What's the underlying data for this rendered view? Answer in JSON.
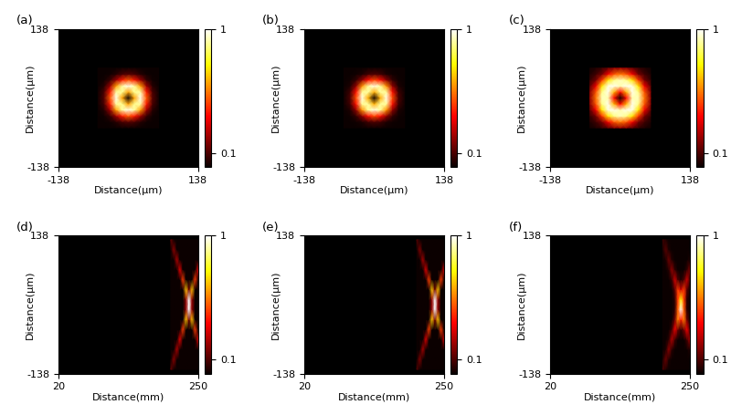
{
  "chart_data": [
    {
      "type": "heatmap",
      "title": "(a)",
      "xlabel": "Distance(µm)",
      "ylabel": "Distance(µm)",
      "xlim": [
        -138,
        138
      ],
      "ylim": [
        -138,
        138
      ],
      "xticks": [
        -138,
        138
      ],
      "yticks": [
        -138,
        138
      ],
      "color": "hot",
      "clim": [
        0,
        1
      ],
      "cticks": [
        0.1,
        1
      ],
      "x": [
        -60,
        -48,
        -36,
        -24,
        -12,
        0,
        12,
        24,
        36,
        48,
        60
      ],
      "y": [
        -60,
        -48,
        -36,
        -24,
        -12,
        0,
        12,
        24,
        36,
        48,
        60
      ],
      "values": [
        [
          0,
          0,
          0,
          0,
          0.01,
          0.01,
          0.01,
          0,
          0,
          0,
          0
        ],
        [
          0,
          0,
          0.01,
          0.04,
          0.09,
          0.11,
          0.09,
          0.04,
          0.01,
          0,
          0
        ],
        [
          0,
          0.01,
          0.07,
          0.22,
          0.41,
          0.5,
          0.41,
          0.22,
          0.07,
          0.01,
          0
        ],
        [
          0,
          0.04,
          0.22,
          0.6,
          0.91,
          0.98,
          0.91,
          0.6,
          0.22,
          0.04,
          0
        ],
        [
          0.01,
          0.09,
          0.41,
          0.91,
          0.89,
          0.6,
          0.89,
          0.91,
          0.41,
          0.09,
          0.01
        ],
        [
          0.01,
          0.11,
          0.5,
          0.98,
          0.6,
          0,
          0.6,
          0.98,
          0.5,
          0.11,
          0.01
        ],
        [
          0.01,
          0.09,
          0.41,
          0.91,
          0.89,
          0.6,
          0.89,
          0.91,
          0.41,
          0.09,
          0.01
        ],
        [
          0,
          0.04,
          0.22,
          0.6,
          0.91,
          0.98,
          0.91,
          0.6,
          0.22,
          0.04,
          0
        ],
        [
          0,
          0.01,
          0.07,
          0.22,
          0.41,
          0.5,
          0.41,
          0.22,
          0.07,
          0.01,
          0
        ],
        [
          0,
          0,
          0.01,
          0.04,
          0.09,
          0.11,
          0.09,
          0.04,
          0.01,
          0,
          0
        ],
        [
          0,
          0,
          0,
          0,
          0.01,
          0.01,
          0.01,
          0,
          0,
          0,
          0
        ]
      ]
    },
    {
      "type": "heatmap",
      "title": "(b)",
      "xlabel": "Distance(µm)",
      "ylabel": "Distance(µm)",
      "xlim": [
        -138,
        138
      ],
      "ylim": [
        -138,
        138
      ],
      "xticks": [
        -138,
        138
      ],
      "yticks": [
        -138,
        138
      ],
      "color": "hot",
      "clim": [
        0,
        1
      ],
      "cticks": [
        0.1,
        1
      ],
      "x": [
        -60,
        -48,
        -36,
        -24,
        -12,
        0,
        12,
        24,
        36,
        48,
        60
      ],
      "y": [
        -60,
        -48,
        -36,
        -24,
        -12,
        0,
        12,
        24,
        36,
        48,
        60
      ],
      "values": [
        [
          0,
          0,
          0,
          0,
          0.01,
          0.01,
          0.01,
          0,
          0,
          0,
          0
        ],
        [
          0,
          0,
          0.01,
          0.03,
          0.08,
          0.1,
          0.08,
          0.03,
          0.01,
          0,
          0
        ],
        [
          0,
          0.01,
          0.06,
          0.2,
          0.39,
          0.48,
          0.39,
          0.2,
          0.06,
          0.01,
          0
        ],
        [
          0,
          0.03,
          0.2,
          0.58,
          0.9,
          0.97,
          0.9,
          0.58,
          0.2,
          0.03,
          0
        ],
        [
          0.01,
          0.08,
          0.39,
          0.9,
          0.9,
          0.62,
          0.9,
          0.9,
          0.39,
          0.08,
          0.01
        ],
        [
          0.01,
          0.1,
          0.48,
          0.97,
          0.62,
          0,
          0.62,
          0.97,
          0.48,
          0.1,
          0.01
        ],
        [
          0.01,
          0.08,
          0.39,
          0.9,
          0.9,
          0.62,
          0.9,
          0.9,
          0.39,
          0.08,
          0.01
        ],
        [
          0,
          0.03,
          0.2,
          0.58,
          0.9,
          0.97,
          0.9,
          0.58,
          0.2,
          0.03,
          0
        ],
        [
          0,
          0.01,
          0.06,
          0.2,
          0.39,
          0.48,
          0.39,
          0.2,
          0.06,
          0.01,
          0
        ],
        [
          0,
          0,
          0.01,
          0.03,
          0.08,
          0.1,
          0.08,
          0.03,
          0.01,
          0,
          0
        ],
        [
          0,
          0,
          0,
          0,
          0.01,
          0.01,
          0.01,
          0,
          0,
          0,
          0
        ]
      ]
    },
    {
      "type": "heatmap",
      "title": "(c)",
      "xlabel": "Distance(µm)",
      "ylabel": "Distance(µm)",
      "xlim": [
        -138,
        138
      ],
      "ylim": [
        -138,
        138
      ],
      "xticks": [
        -138,
        138
      ],
      "yticks": [
        -138,
        138
      ],
      "color": "hot",
      "clim": [
        0,
        1
      ],
      "cticks": [
        0.1,
        1
      ],
      "x": [
        -60,
        -48,
        -36,
        -24,
        -12,
        0,
        12,
        24,
        36,
        48,
        60
      ],
      "y": [
        -60,
        -48,
        -36,
        -24,
        -12,
        0,
        12,
        24,
        36,
        48,
        60
      ],
      "values": [
        [
          0.01,
          0.03,
          0.06,
          0.12,
          0.18,
          0.2,
          0.18,
          0.12,
          0.06,
          0.03,
          0.01
        ],
        [
          0.03,
          0.08,
          0.16,
          0.35,
          0.49,
          0.54,
          0.49,
          0.35,
          0.16,
          0.08,
          0.03
        ],
        [
          0.06,
          0.16,
          0.44,
          0.71,
          0.88,
          0.93,
          0.88,
          0.71,
          0.44,
          0.16,
          0.06
        ],
        [
          0.12,
          0.35,
          0.71,
          0.97,
          0.98,
          0.92,
          0.98,
          0.97,
          0.71,
          0.35,
          0.12
        ],
        [
          0.18,
          0.49,
          0.88,
          0.98,
          0.63,
          0.37,
          0.63,
          0.98,
          0.88,
          0.49,
          0.18
        ],
        [
          0.2,
          0.54,
          0.93,
          0.92,
          0.37,
          0,
          0.37,
          0.92,
          0.93,
          0.54,
          0.2
        ],
        [
          0.18,
          0.49,
          0.88,
          0.98,
          0.63,
          0.37,
          0.63,
          0.98,
          0.88,
          0.49,
          0.18
        ],
        [
          0.12,
          0.35,
          0.71,
          0.97,
          0.98,
          0.92,
          0.98,
          0.97,
          0.71,
          0.35,
          0.12
        ],
        [
          0.06,
          0.16,
          0.44,
          0.71,
          0.88,
          0.93,
          0.88,
          0.71,
          0.44,
          0.16,
          0.06
        ],
        [
          0.03,
          0.08,
          0.16,
          0.35,
          0.49,
          0.54,
          0.49,
          0.35,
          0.16,
          0.08,
          0.03
        ],
        [
          0.01,
          0.03,
          0.06,
          0.12,
          0.18,
          0.2,
          0.18,
          0.12,
          0.06,
          0.03,
          0.01
        ]
      ]
    },
    {
      "type": "heatmap",
      "title": "(d)",
      "xlabel": "Distance(mm)",
      "ylabel": "Distance(µm)",
      "xlim": [
        20,
        250
      ],
      "ylim": [
        -138,
        138
      ],
      "xticks": [
        20,
        250
      ],
      "yticks": [
        -138,
        138
      ],
      "color": "hot",
      "clim": [
        0,
        1
      ],
      "cticks": [
        0.1,
        1
      ],
      "x": [
        205,
        210,
        215,
        220,
        225,
        230,
        235,
        240,
        245,
        250
      ],
      "y": [
        -130,
        -110,
        -90,
        -70,
        -50,
        -30,
        -10,
        10,
        30,
        50,
        70,
        90,
        110,
        130
      ],
      "values": [
        [
          0.15,
          0,
          0,
          0,
          0,
          0,
          0,
          0,
          0,
          0
        ],
        [
          0,
          0.2,
          0,
          0,
          0,
          0,
          0,
          0,
          0,
          0
        ],
        [
          0,
          0,
          0.25,
          0,
          0,
          0,
          0,
          0,
          0,
          0
        ],
        [
          0,
          0,
          0,
          0.33,
          0,
          0,
          0,
          0,
          0,
          0.33
        ],
        [
          0,
          0,
          0,
          0,
          0.45,
          0,
          0,
          0,
          0.45,
          0
        ],
        [
          0,
          0,
          0,
          0,
          0,
          0.65,
          0.15,
          0.65,
          0,
          0
        ],
        [
          0,
          0,
          0,
          0,
          0,
          0.2,
          1.0,
          0.2,
          0,
          0
        ],
        [
          0,
          0,
          0,
          0,
          0,
          0.2,
          1.0,
          0.2,
          0,
          0
        ],
        [
          0,
          0,
          0,
          0,
          0,
          0.65,
          0.15,
          0.65,
          0,
          0
        ],
        [
          0,
          0,
          0,
          0,
          0.45,
          0,
          0,
          0,
          0.45,
          0
        ],
        [
          0,
          0,
          0,
          0.33,
          0,
          0,
          0,
          0,
          0,
          0.33
        ],
        [
          0,
          0,
          0.25,
          0,
          0,
          0,
          0,
          0,
          0,
          0
        ],
        [
          0,
          0.2,
          0,
          0,
          0,
          0,
          0,
          0,
          0,
          0
        ],
        [
          0.15,
          0,
          0,
          0,
          0,
          0,
          0,
          0,
          0,
          0
        ]
      ]
    },
    {
      "type": "heatmap",
      "title": "(e)",
      "xlabel": "Distance(mm)",
      "ylabel": "Distance(µm)",
      "xlim": [
        20,
        250
      ],
      "ylim": [
        -138,
        138
      ],
      "xticks": [
        20,
        250
      ],
      "yticks": [
        -138,
        138
      ],
      "color": "hot",
      "clim": [
        0,
        1
      ],
      "cticks": [
        0.1,
        1
      ],
      "x": [
        205,
        210,
        215,
        220,
        225,
        230,
        235,
        240,
        245,
        250
      ],
      "y": [
        -130,
        -110,
        -90,
        -70,
        -50,
        -30,
        -10,
        10,
        30,
        50,
        70,
        90,
        110,
        130
      ],
      "values": [
        [
          0.12,
          0,
          0,
          0,
          0,
          0,
          0,
          0,
          0,
          0
        ],
        [
          0,
          0.18,
          0,
          0,
          0,
          0,
          0,
          0,
          0,
          0
        ],
        [
          0,
          0,
          0.24,
          0,
          0,
          0,
          0,
          0,
          0,
          0
        ],
        [
          0,
          0,
          0,
          0.32,
          0,
          0,
          0,
          0,
          0,
          0.32
        ],
        [
          0,
          0,
          0,
          0,
          0.45,
          0,
          0,
          0,
          0.45,
          0
        ],
        [
          0,
          0,
          0,
          0,
          0,
          0.66,
          0.15,
          0.66,
          0,
          0
        ],
        [
          0,
          0,
          0,
          0,
          0,
          0.2,
          1.0,
          0.2,
          0,
          0
        ],
        [
          0,
          0,
          0,
          0,
          0,
          0.2,
          1.0,
          0.2,
          0,
          0
        ],
        [
          0,
          0,
          0,
          0,
          0,
          0.66,
          0.15,
          0.66,
          0,
          0
        ],
        [
          0,
          0,
          0,
          0,
          0.45,
          0,
          0,
          0,
          0.45,
          0
        ],
        [
          0,
          0,
          0,
          0.32,
          0,
          0,
          0,
          0,
          0,
          0.32
        ],
        [
          0,
          0,
          0.24,
          0,
          0,
          0,
          0,
          0,
          0,
          0
        ],
        [
          0,
          0.18,
          0,
          0,
          0,
          0,
          0,
          0,
          0,
          0
        ],
        [
          0.12,
          0,
          0,
          0,
          0,
          0,
          0,
          0,
          0,
          0
        ]
      ]
    },
    {
      "type": "heatmap",
      "title": "(f)",
      "xlabel": "Distance(mm)",
      "ylabel": "Distance(µm)",
      "xlim": [
        20,
        250
      ],
      "ylim": [
        -138,
        138
      ],
      "xticks": [
        20,
        250
      ],
      "yticks": [
        -138,
        138
      ],
      "color": "hot",
      "clim": [
        0,
        1
      ],
      "cticks": [
        0.1,
        1
      ],
      "x": [
        205,
        210,
        215,
        220,
        225,
        230,
        235,
        240,
        245,
        250
      ],
      "y": [
        -130,
        -110,
        -90,
        -70,
        -50,
        -30,
        -10,
        10,
        30,
        50,
        70,
        90,
        110,
        130
      ],
      "values": [
        [
          0.1,
          0.03,
          0,
          0,
          0,
          0,
          0,
          0,
          0,
          0
        ],
        [
          0.03,
          0.15,
          0.03,
          0,
          0,
          0,
          0,
          0,
          0,
          0
        ],
        [
          0,
          0.03,
          0.2,
          0.05,
          0,
          0,
          0,
          0,
          0,
          0.05
        ],
        [
          0,
          0,
          0.05,
          0.25,
          0.08,
          0,
          0,
          0,
          0.08,
          0.25
        ],
        [
          0,
          0,
          0,
          0.08,
          0.35,
          0.15,
          0.05,
          0.15,
          0.35,
          0.08
        ],
        [
          0,
          0,
          0,
          0,
          0.15,
          0.55,
          0.4,
          0.55,
          0.15,
          0
        ],
        [
          0,
          0,
          0,
          0,
          0.05,
          0.5,
          1.0,
          0.5,
          0.05,
          0
        ],
        [
          0,
          0,
          0,
          0,
          0.05,
          0.45,
          0.75,
          0.45,
          0.05,
          0
        ],
        [
          0,
          0,
          0,
          0,
          0.12,
          0.45,
          0.3,
          0.45,
          0.12,
          0
        ],
        [
          0,
          0,
          0,
          0.06,
          0.3,
          0.1,
          0.03,
          0.1,
          0.3,
          0.06
        ],
        [
          0,
          0,
          0.04,
          0.2,
          0.06,
          0,
          0,
          0,
          0.06,
          0.2
        ],
        [
          0,
          0.02,
          0.15,
          0.04,
          0,
          0,
          0,
          0,
          0,
          0.04
        ],
        [
          0.02,
          0.12,
          0.03,
          0,
          0,
          0,
          0,
          0,
          0,
          0
        ],
        [
          0.08,
          0.03,
          0,
          0,
          0,
          0,
          0,
          0,
          0,
          0
        ]
      ]
    }
  ]
}
